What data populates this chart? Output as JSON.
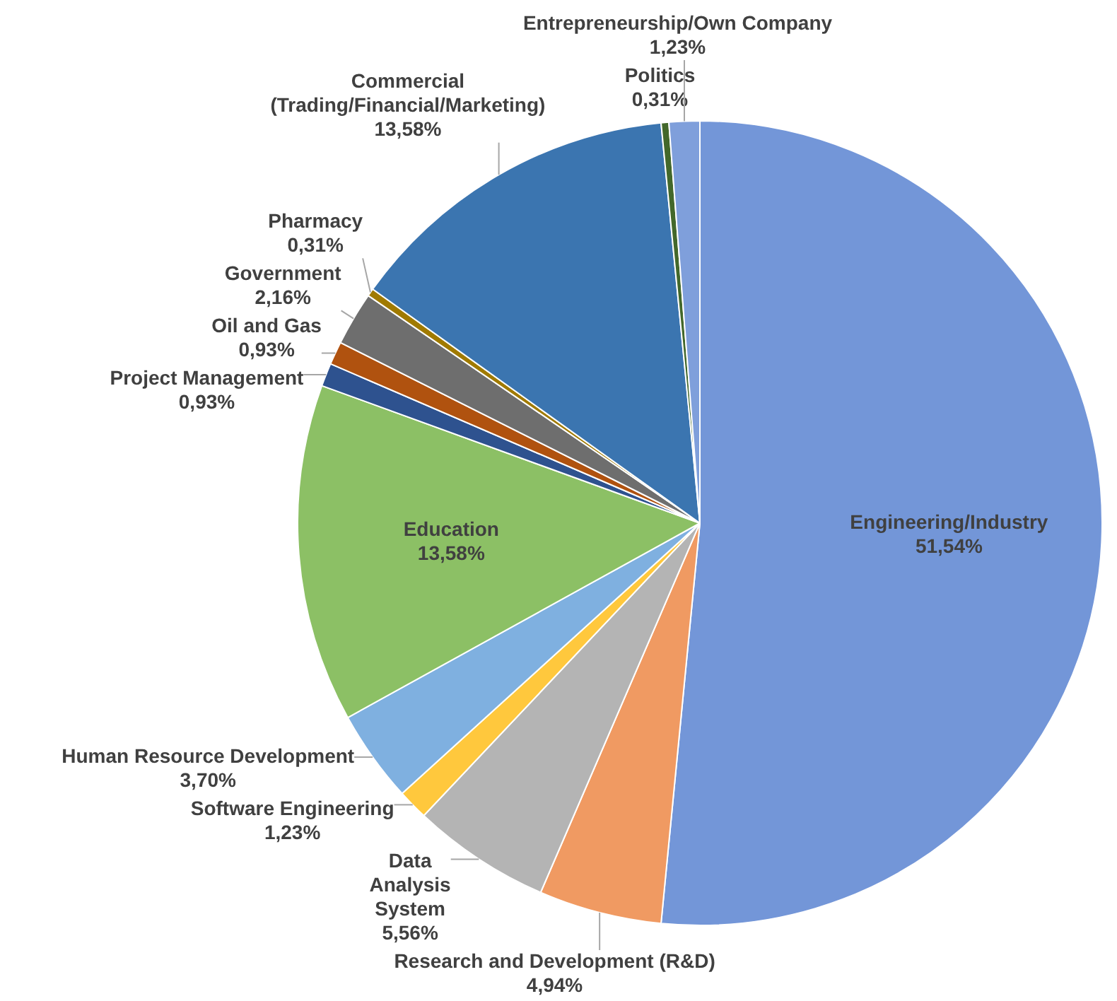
{
  "chart_data": {
    "type": "pie",
    "categories": [
      "Engineering/Industry",
      "Research and Development (R&D)",
      "Data\nAnalysis\nSystem",
      "Software Engineering",
      "Human Resource Development",
      "Education",
      "Project Management",
      "Oil and Gas",
      "Government",
      "Pharmacy",
      "Commercial\n(Trading/Financial/Marketing)",
      "Politics",
      "Entrepreneurship/Own Company"
    ],
    "values": [
      51.54,
      4.94,
      5.56,
      1.23,
      3.7,
      13.58,
      0.93,
      0.93,
      2.16,
      0.31,
      13.58,
      0.31,
      1.23
    ],
    "value_labels": [
      "51,54%",
      "4,94%",
      "5,56%",
      "1,23%",
      "3,70%",
      "13,58%",
      "0,93%",
      "0,93%",
      "2,16%",
      "0,31%",
      "13,58%",
      "0,31%",
      "1,23%"
    ],
    "colors": [
      "#7396d8",
      "#f09a62",
      "#b4b4b4",
      "#ffc83d",
      "#7fb0e0",
      "#8cc065",
      "#2e528f",
      "#b0520f",
      "#6e6e6e",
      "#a07a00",
      "#3b75b0",
      "#43682b",
      "#7f9fdb"
    ]
  }
}
